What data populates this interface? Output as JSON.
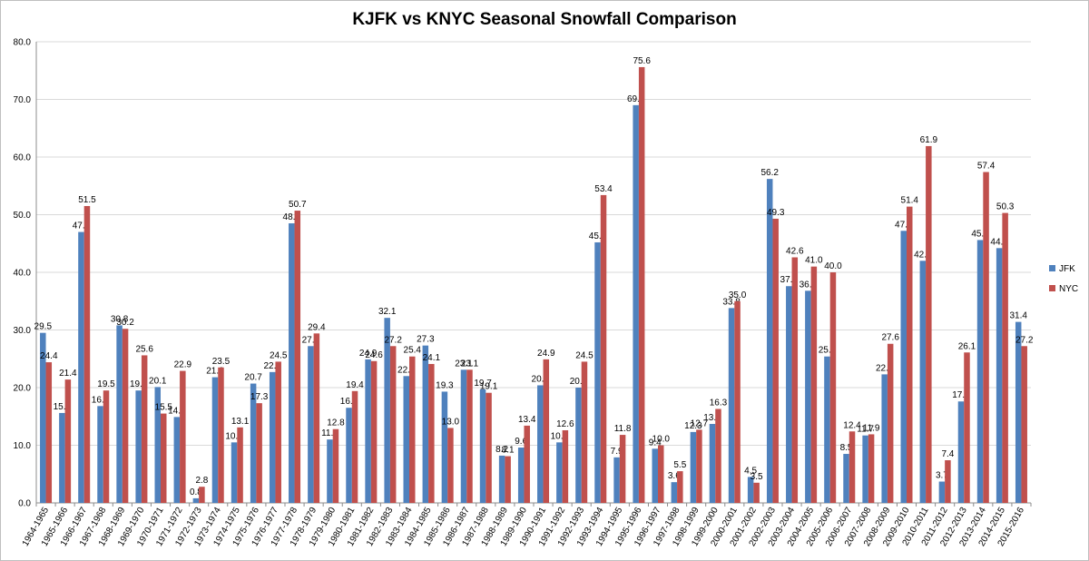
{
  "chart_data": {
    "type": "bar",
    "title": "KJFK vs KNYC Seasonal Snowfall Comparison",
    "xlabel": "",
    "ylabel": "",
    "ylim": [
      0,
      80
    ],
    "yticks": [
      "0.0",
      "10.0",
      "20.0",
      "30.0",
      "40.0",
      "50.0",
      "60.0",
      "70.0",
      "80.0"
    ],
    "grid": true,
    "legend_position": "right",
    "categories": [
      "1964-1965",
      "1965-1966",
      "1966-1967",
      "1967-1968",
      "1968-1969",
      "1969-1970",
      "1970-1971",
      "1971-1972",
      "1972-1973",
      "1973-1974",
      "1974-1975",
      "1975-1976",
      "1976-1977",
      "1977-1978",
      "1978-1979",
      "1979-1980",
      "1980-1981",
      "1981-1982",
      "1982-1983",
      "1983-1984",
      "1984-1985",
      "1985-1986",
      "1986-1987",
      "1987-1988",
      "1988-1989",
      "1989-1990",
      "1990-1991",
      "1991-1992",
      "1992-1993",
      "1993-1994",
      "1994-1995",
      "1995-1996",
      "1996-1997",
      "1997-1998",
      "1998-1999",
      "1999-2000",
      "2000-2001",
      "2001-2002",
      "2002-2003",
      "2003-2004",
      "2004-2005",
      "2005-2006",
      "2006-2007",
      "2007-2008",
      "2008-2009",
      "2009-2010",
      "2010-2011",
      "2011-2012",
      "2012-2013",
      "2013-2014",
      "2014-2015",
      "2015-2016"
    ],
    "series": [
      {
        "name": "JFK",
        "color": "#4f81bd",
        "values": [
          29.5,
          15.6,
          47.0,
          16.8,
          30.8,
          19.5,
          20.1,
          14.9,
          0.8,
          21.8,
          10.5,
          20.7,
          22.7,
          48.5,
          27.2,
          11.0,
          16.5,
          24.9,
          32.1,
          22.0,
          27.3,
          19.3,
          23.1,
          19.7,
          8.2,
          9.6,
          20.4,
          10.5,
          20.0,
          45.2,
          7.9,
          69.0,
          9.4,
          3.6,
          12.3,
          13.7,
          33.8,
          4.5,
          56.2,
          37.6,
          36.8,
          25.4,
          8.5,
          11.7,
          22.3,
          47.2,
          42.0,
          3.7,
          17.6,
          45.6,
          44.2,
          31.4
        ]
      },
      {
        "name": "NYC",
        "color": "#c0504d",
        "values": [
          24.4,
          21.4,
          51.5,
          19.5,
          30.2,
          25.6,
          15.5,
          22.9,
          2.8,
          23.5,
          13.1,
          17.3,
          24.5,
          50.7,
          29.4,
          12.8,
          19.4,
          24.6,
          27.2,
          25.4,
          24.1,
          13.0,
          23.1,
          19.1,
          8.1,
          13.4,
          24.9,
          12.6,
          24.5,
          53.4,
          11.8,
          75.6,
          10.0,
          5.5,
          12.7,
          16.3,
          35.0,
          3.5,
          49.3,
          42.6,
          41.0,
          40.0,
          12.4,
          11.9,
          27.6,
          51.4,
          61.9,
          7.4,
          26.1,
          57.4,
          50.3,
          27.2
        ]
      }
    ]
  }
}
